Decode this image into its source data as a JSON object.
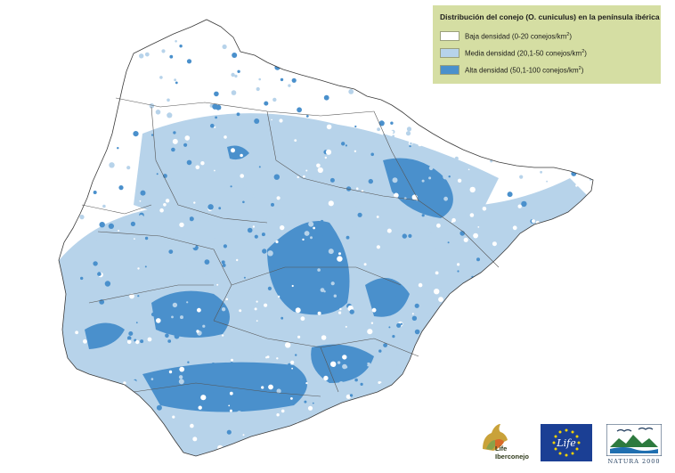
{
  "legend": {
    "title": "Distribución del conejo (O. cuniculus) en la península ibérica",
    "items": [
      {
        "label_prefix": "Baja densidad (0-20 conejos/km",
        "label_suffix": ")",
        "sup": "2",
        "color": "#ffffff"
      },
      {
        "label_prefix": "Media densidad (20,1-50 conejos/km",
        "label_suffix": ")",
        "sup": "2",
        "color": "#b7d3ea"
      },
      {
        "label_prefix": "Alta densidad (50,1-100 conejos/km",
        "label_suffix": ")",
        "sup": "2",
        "color": "#4a90cc"
      }
    ]
  },
  "logos": {
    "life_iberconejo": {
      "line1": "Life",
      "line2": "Iberconejo"
    },
    "eu_life": {
      "text": "Life"
    },
    "natura_2000": {
      "text": "NATURA 2000"
    }
  },
  "map": {
    "land_border_color": "#444444",
    "legend_bg": "#d5dea3"
  }
}
